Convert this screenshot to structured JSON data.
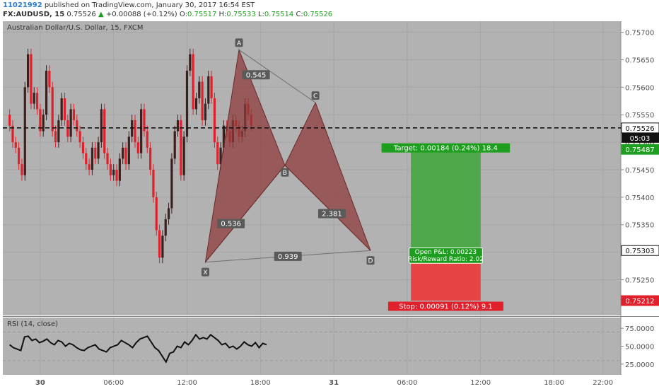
{
  "header": {
    "user": "11021992",
    "published_text": "published on TradingView.com, January 30, 2017 16:54 EST",
    "symbol": "FX:AUDUSD, 15",
    "last": "0.75526",
    "change": "+0.00088 (+0.12%)",
    "o_label": "O:",
    "o_value": "0.75517",
    "h_label": "H:",
    "h_value": "0.75533",
    "l_label": "L:",
    "l_value": "0.75514",
    "c_label": "C:",
    "c_value": "0.75526"
  },
  "chart_data": {
    "type": "candlestick",
    "title": "Australian Dollar/U.S. Dollar, 15, FXCM",
    "ylim": [
      0.75185,
      0.7572
    ],
    "y_ticks": [
      "0.75700",
      "0.75650",
      "0.75600",
      "0.75550",
      "0.75500",
      "0.75450",
      "0.75400",
      "0.75350",
      "0.75300",
      "0.75250"
    ],
    "x_ticks": [
      "30",
      "06:00",
      "12:00",
      "18:00",
      "31",
      "06:00",
      "12:00",
      "18:00",
      "22:00"
    ],
    "candles_close_approx": [
      0.7553,
      0.755,
      0.7549,
      0.7546,
      0.7544,
      0.756,
      0.7566,
      0.7557,
      0.7559,
      0.7556,
      0.7552,
      0.7555,
      0.7563,
      0.756,
      0.7552,
      0.755,
      0.7554,
      0.7558,
      0.7554,
      0.7551,
      0.7556,
      0.7554,
      0.7552,
      0.755,
      0.7548,
      0.7546,
      0.7545,
      0.7549,
      0.7547,
      0.755,
      0.7556,
      0.7548,
      0.7546,
      0.7544,
      0.7545,
      0.7543,
      0.7547,
      0.7549,
      0.7546,
      0.7551,
      0.7554,
      0.755,
      0.7548,
      0.7556,
      0.7552,
      0.7549,
      0.7545,
      0.754,
      0.7534,
      0.7529,
      0.7533,
      0.7536,
      0.7538,
      0.7547,
      0.7552,
      0.7554,
      0.7544,
      0.7551,
      0.7563,
      0.7566,
      0.7556,
      0.7558,
      0.7561,
      0.7554,
      0.7557,
      0.7562,
      0.7558,
      0.755,
      0.7546,
      0.7549,
      0.7553,
      0.7552,
      0.755,
      0.7554,
      0.7553,
      0.7551,
      0.7552,
      0.7557,
      0.7555,
      0.7553
    ],
    "current_price": "0.75526",
    "countdown": "05:03",
    "price_labels": [
      "0.75487",
      "0.75303",
      "0.75212"
    ],
    "pattern": {
      "points": [
        {
          "label": "X",
          "time": "13:30",
          "price": 0.75282
        },
        {
          "label": "A",
          "time": "16:15",
          "price": 0.75668
        },
        {
          "label": "B",
          "time": "20:00",
          "price": 0.75458
        },
        {
          "label": "C",
          "time": "22:30",
          "price": 0.75572
        },
        {
          "label": "D",
          "time": "03:00",
          "price": 0.75303
        }
      ],
      "ratios": [
        "0.545",
        "0.536",
        "2.381",
        "0.939"
      ]
    },
    "position": {
      "target_label": "Target: 0.00184 (0.24%) 18.4",
      "stop_label": "Stop: 0.00091 (0.12%) 9.1",
      "open_pnl": "Open P&L: 0.00223",
      "rr": "Risk/Reward Ratio: 2.02",
      "entry": 0.75303,
      "target": 0.75487,
      "stop": 0.75212
    },
    "rsi": {
      "label": "RSI (14, close)",
      "ticks": [
        "75.0000",
        "50.0000",
        "25.0000"
      ],
      "values": [
        52,
        48,
        46,
        44,
        63,
        64,
        58,
        60,
        55,
        57,
        60,
        55,
        52,
        58,
        56,
        50,
        54,
        52,
        48,
        45,
        44,
        48,
        50,
        52,
        46,
        44,
        42,
        48,
        50,
        52,
        58,
        55,
        52,
        48,
        55,
        60,
        62,
        64,
        56,
        48,
        44,
        36,
        28,
        40,
        42,
        50,
        48,
        56,
        52,
        58,
        66,
        60,
        62,
        60,
        66,
        62,
        58,
        52,
        54,
        48,
        50,
        46,
        50,
        56,
        52,
        50,
        55,
        48,
        54,
        52
      ]
    },
    "colors": {
      "panel_bg": "#b2b2b2",
      "up": "#3b2020",
      "down": "#e0202a",
      "pattern_fill": "#8e3b3b",
      "target_fill": "#4ea84b",
      "stop_fill": "#e64444",
      "target_label": "#1e9e1e",
      "stop_label": "#e0202a"
    }
  }
}
